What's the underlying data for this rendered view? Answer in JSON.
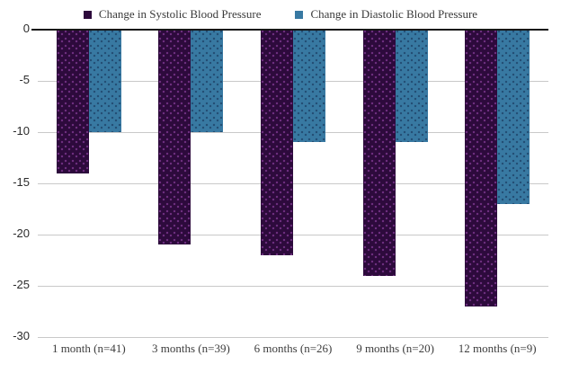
{
  "chart_data": {
    "type": "bar",
    "title": "",
    "xlabel": "",
    "ylabel": "",
    "categories": [
      "1 month (n=41)",
      "3 months (n=39)",
      "6 months (n=26)",
      "9 months (n=20)",
      "12 months (n=9)"
    ],
    "series": [
      {
        "name": "Change in Systolic Blood Pressure",
        "values": [
          -14,
          -21,
          -22,
          -24,
          -27
        ],
        "color": "#2d0a3c",
        "dot_color": "#6e2f80"
      },
      {
        "name": "Change in Diastolic Blood Pressure",
        "values": [
          -10,
          -10,
          -11,
          -11,
          -17
        ],
        "color": "#3879a2",
        "dot_color": "#234d74"
      }
    ],
    "ylim": [
      -30,
      0
    ],
    "yticks": [
      0,
      -5,
      -10,
      -15,
      -20,
      -25,
      -30
    ],
    "grid": "horizontal",
    "legend_position": "top-center",
    "bar_texture": "dotted",
    "colors": {
      "background": "#ffffff",
      "gridline": "#c9c9c9",
      "zero_line": "#161616",
      "axis_text": "#2b2b2b",
      "category_text": "#3d3d3d",
      "legend_text": "#3a3a3a"
    }
  }
}
